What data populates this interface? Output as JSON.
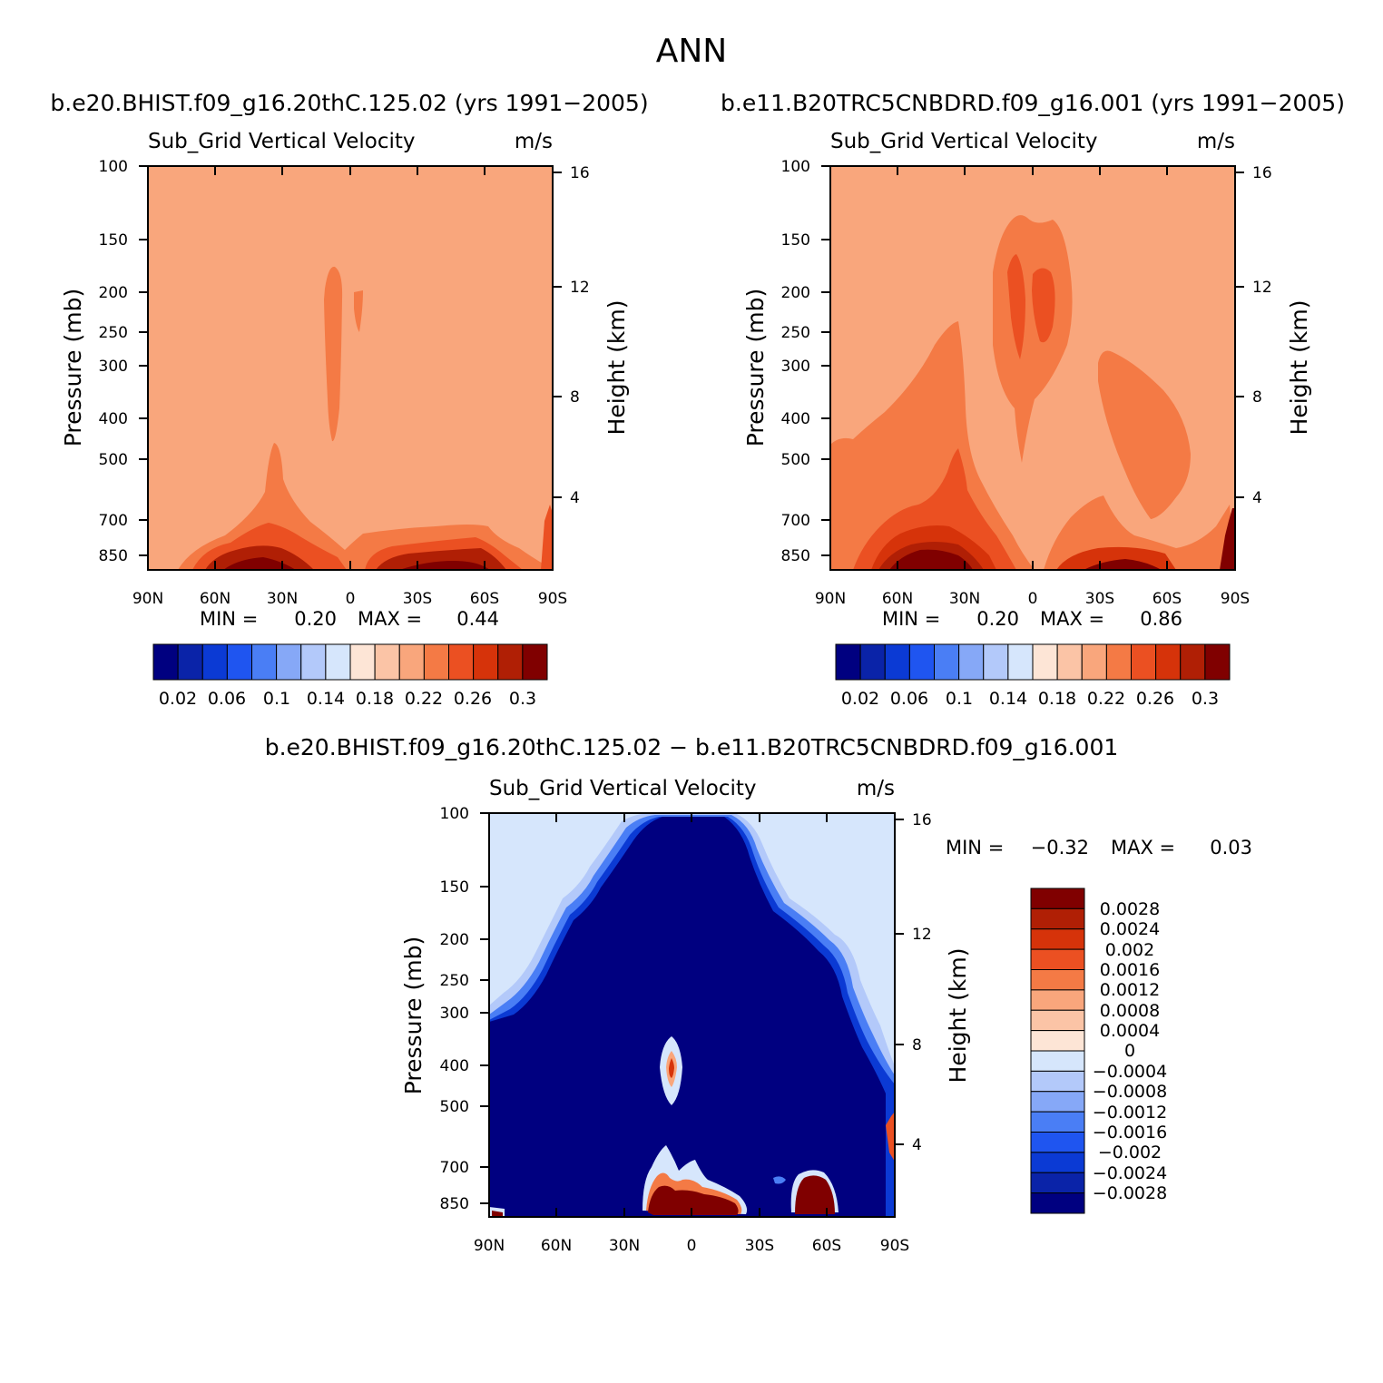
{
  "page_title": "ANN",
  "chart_data": [
    {
      "type": "heatmap",
      "case_title": "b.e20.BHIST.f09_g16.20thC.125.02 (yrs 1991−2005)",
      "variable": "Sub_Grid Vertical Velocity",
      "units": "m/s",
      "ylabel": "Pressure (mb)",
      "ylabel_right": "Height (km)",
      "x_ticks": [
        "90N",
        "60N",
        "30N",
        "0",
        "30S",
        "60S",
        "90S"
      ],
      "xlim": [
        90,
        -90
      ],
      "y_ticks": [
        "100",
        "150",
        "200",
        "250",
        "300",
        "400",
        "500",
        "700",
        "850"
      ],
      "ylim": [
        100,
        925
      ],
      "height_ticks": [
        "16",
        "12",
        "8",
        "4"
      ],
      "min_label": "MIN =",
      "min": "0.20",
      "max_label": "MAX =",
      "max": "0.44",
      "colorbar_labels": [
        "0.02",
        "0.06",
        "0.1",
        "0.14",
        "0.18",
        "0.22",
        "0.26",
        "0.3"
      ],
      "colorbar_colors": [
        "#000080",
        "#0a23a8",
        "#0b3ad4",
        "#1f55f0",
        "#4a7ef5",
        "#86a8f7",
        "#b3c9fa",
        "#d6e6fc",
        "#fde5d6",
        "#fbc4a6",
        "#f9a67c",
        "#f47a45",
        "#eb5022",
        "#d6330a",
        "#b01f05",
        "#800000"
      ]
    },
    {
      "type": "heatmap",
      "case_title": "b.e11.B20TRC5CNBDRD.f09_g16.001 (yrs 1991−2005)",
      "variable": "Sub_Grid Vertical Velocity",
      "units": "m/s",
      "ylabel": "Pressure (mb)",
      "ylabel_right": "Height (km)",
      "x_ticks": [
        "90N",
        "60N",
        "30N",
        "0",
        "30S",
        "60S",
        "90S"
      ],
      "xlim": [
        90,
        -90
      ],
      "y_ticks": [
        "100",
        "150",
        "200",
        "250",
        "300",
        "400",
        "500",
        "700",
        "850"
      ],
      "ylim": [
        100,
        925
      ],
      "height_ticks": [
        "16",
        "12",
        "8",
        "4"
      ],
      "min_label": "MIN =",
      "min": "0.20",
      "max_label": "MAX =",
      "max": "0.86",
      "colorbar_labels": [
        "0.02",
        "0.06",
        "0.1",
        "0.14",
        "0.18",
        "0.22",
        "0.26",
        "0.3"
      ],
      "colorbar_colors": [
        "#000080",
        "#0a23a8",
        "#0b3ad4",
        "#1f55f0",
        "#4a7ef5",
        "#86a8f7",
        "#b3c9fa",
        "#d6e6fc",
        "#fde5d6",
        "#fbc4a6",
        "#f9a67c",
        "#f47a45",
        "#eb5022",
        "#d6330a",
        "#b01f05",
        "#800000"
      ]
    },
    {
      "type": "heatmap",
      "case_title": "b.e20.BHIST.f09_g16.20thC.125.02 − b.e11.B20TRC5CNBDRD.f09_g16.001",
      "variable": "Sub_Grid Vertical Velocity",
      "units": "m/s",
      "ylabel": "Pressure (mb)",
      "ylabel_right": "Height (km)",
      "x_ticks": [
        "90N",
        "60N",
        "30N",
        "0",
        "30S",
        "60S",
        "90S"
      ],
      "xlim": [
        90,
        -90
      ],
      "y_ticks": [
        "100",
        "150",
        "200",
        "250",
        "300",
        "400",
        "500",
        "700",
        "850"
      ],
      "ylim": [
        100,
        925
      ],
      "height_ticks": [
        "16",
        "12",
        "8",
        "4"
      ],
      "min_label": "MIN =",
      "min": "−0.32",
      "max_label": "MAX =",
      "max": "0.03",
      "colorbar_labels": [
        "0.0028",
        "0.0024",
        "0.002",
        "0.0016",
        "0.0012",
        "0.0008",
        "0.0004",
        "0",
        "−0.0004",
        "−0.0008",
        "−0.0012",
        "−0.0016",
        "−0.002",
        "−0.0024",
        "−0.0028"
      ],
      "colorbar_colors": [
        "#800000",
        "#b01f05",
        "#d6330a",
        "#eb5022",
        "#f47a45",
        "#f9a67c",
        "#fbc4a6",
        "#fde5d6",
        "#d6e6fc",
        "#b3c9fa",
        "#86a8f7",
        "#4a7ef5",
        "#1f55f0",
        "#0b3ad4",
        "#0a23a8",
        "#000080"
      ]
    }
  ]
}
